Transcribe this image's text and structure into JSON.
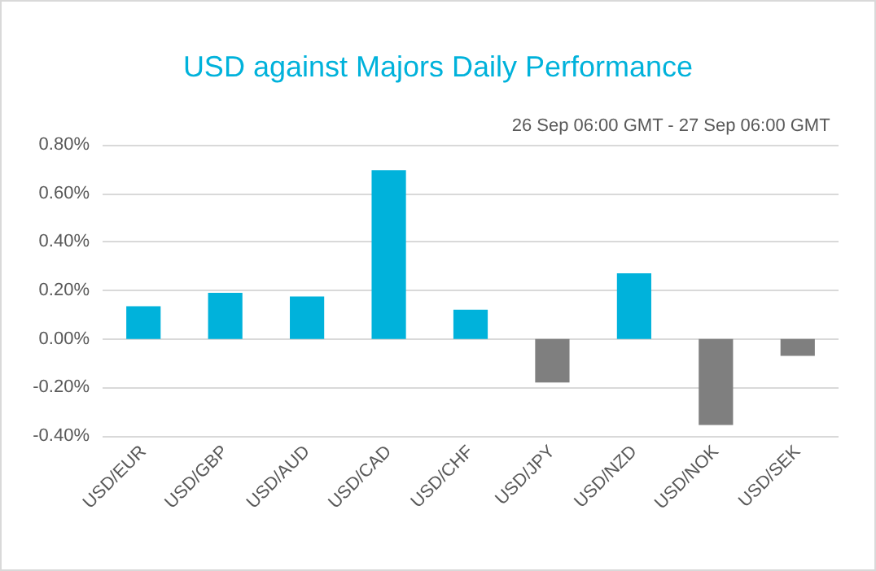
{
  "chart_data": {
    "type": "bar",
    "title": "USD against Majors Daily Performance",
    "subtitle": "26 Sep 06:00 GMT - 27 Sep 06:00 GMT",
    "categories": [
      "USD/EUR",
      "USD/GBP",
      "USD/AUD",
      "USD/CAD",
      "USD/CHF",
      "USD/JPY",
      "USD/NZD",
      "USD/NOK",
      "USD/SEK"
    ],
    "values": [
      0.135,
      0.19,
      0.175,
      0.695,
      0.12,
      -0.18,
      0.27,
      -0.355,
      -0.07
    ],
    "colors": [
      "#00b2db",
      "#00b2db",
      "#00b2db",
      "#00b2db",
      "#00b2db",
      "#7f7f7f",
      "#00b2db",
      "#7f7f7f",
      "#7f7f7f"
    ],
    "ylim": [
      -0.4,
      0.8
    ],
    "yticks": [
      {
        "value": -0.4,
        "label": "-0.40%"
      },
      {
        "value": -0.2,
        "label": "-0.20%"
      },
      {
        "value": 0,
        "label": "0.00%"
      },
      {
        "value": 0.2,
        "label": "0.20%"
      },
      {
        "value": 0.4,
        "label": "0.40%"
      },
      {
        "value": 0.6,
        "label": "0.60%"
      },
      {
        "value": 0.8,
        "label": "0.80%"
      }
    ],
    "grid": "y"
  }
}
